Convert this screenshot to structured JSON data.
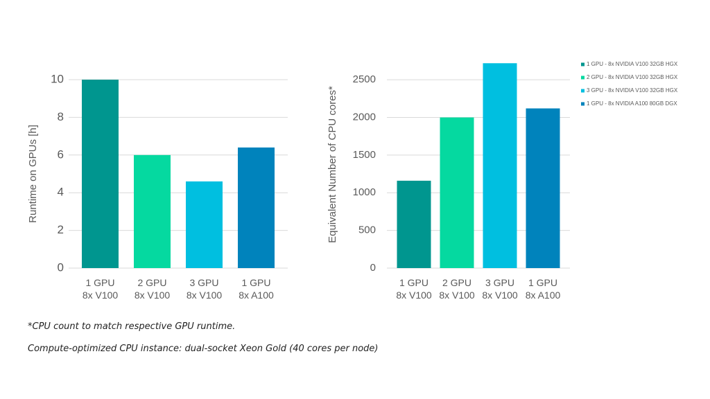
{
  "chart_data": [
    {
      "type": "bar",
      "y_label": "Runtime on GPUs [h]",
      "categories": [
        "1 GPU\n8x V100",
        "2 GPU\n8x V100",
        "3 GPU\n8x V100",
        "1 GPU\n8x A100"
      ],
      "values": [
        10,
        6,
        4.6,
        6.4
      ],
      "colors": [
        "#00968f",
        "#05d9a0",
        "#00bfe0",
        "#0083bc"
      ],
      "ylim": [
        0,
        10
      ],
      "yticks": [
        0,
        2,
        4,
        6,
        8,
        10
      ],
      "grid": true
    },
    {
      "type": "bar",
      "y_label": "Equivalent Number of CPU cores*",
      "categories": [
        "1 GPU\n8x V100",
        "2 GPU\n8x V100",
        "3 GPU\n8x V100",
        "1 GPU\n8x A100"
      ],
      "values": [
        1160,
        2000,
        2720,
        2120
      ],
      "colors": [
        "#00968f",
        "#05d9a0",
        "#00bfe0",
        "#0083bc"
      ],
      "legend": [
        "1 GPU - 8x NVIDIA V100 32GB HGX",
        "2 GPU - 8x NVIDIA V100 32GB HGX",
        "3 GPU - 8x NVIDIA V100 32GB HGX",
        "1 GPU - 8x NVIDIA A100 80GB DGX"
      ],
      "ylim": [
        0,
        2750
      ],
      "yticks": [
        0,
        500,
        1000,
        1500,
        2000,
        2500
      ],
      "grid": true
    }
  ],
  "notes": [
    "*CPU count to match respective GPU runtime.",
    "Compute-optimized CPU instance: dual-socket Xeon Gold (40 cores per node)"
  ]
}
